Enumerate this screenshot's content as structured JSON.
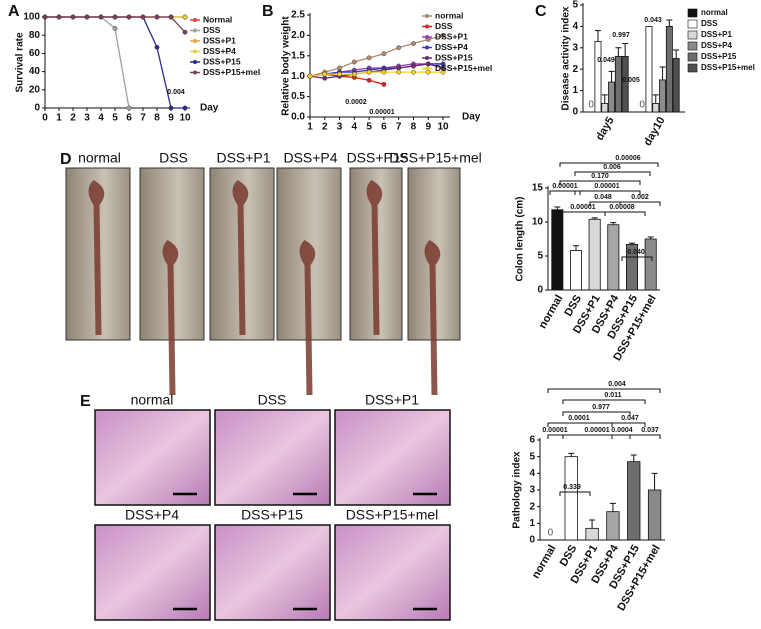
{
  "panels": [
    "A",
    "B",
    "C",
    "D",
    "E"
  ],
  "photo_labels": {
    "D": [
      "normal",
      "DSS",
      "DSS+P1",
      "DSS+P4",
      "DSS+P15",
      "DSS+P15+mel"
    ],
    "E": [
      "normal",
      "DSS",
      "DSS+P1",
      "DSS+P4",
      "DSS+P15",
      "DSS+P15+mel"
    ]
  },
  "chart_data": [
    {
      "type": "line",
      "xlabel": "Day",
      "ylabel": "Survival rate",
      "x": [
        0,
        1,
        2,
        3,
        4,
        5,
        6,
        7,
        8,
        9,
        10
      ],
      "xlim": [
        0,
        10
      ],
      "xticks": [
        0,
        1,
        2,
        3,
        4,
        5,
        6,
        7,
        8,
        9,
        10
      ],
      "ylim": [
        0,
        100
      ],
      "yticks": [
        0,
        20,
        40,
        60,
        80,
        100
      ],
      "series": [
        {
          "name": "Normal",
          "color": "#e8413c",
          "values": [
            100,
            100,
            100,
            100,
            100,
            100,
            100,
            100,
            100,
            100,
            100
          ]
        },
        {
          "name": "DSS",
          "color": "#a0a0a0",
          "values": [
            100,
            100,
            100,
            100,
            100,
            87.5,
            0,
            null,
            null,
            null,
            null
          ]
        },
        {
          "name": "DSS+P1",
          "color": "#f0a23c",
          "values": [
            100,
            100,
            100,
            100,
            100,
            100,
            100,
            100,
            100,
            100,
            100
          ]
        },
        {
          "name": "DSS+P4",
          "color": "#e6d23c",
          "values": [
            100,
            100,
            100,
            100,
            100,
            100,
            100,
            100,
            100,
            100,
            100
          ]
        },
        {
          "name": "DSS+P15",
          "color": "#2b2b8c",
          "values": [
            100,
            100,
            100,
            100,
            100,
            100,
            100,
            100,
            66.7,
            0,
            0
          ]
        },
        {
          "name": "DSS+P15+mel",
          "color": "#7b3f5e",
          "values": [
            100,
            100,
            100,
            100,
            100,
            100,
            100,
            100,
            100,
            100,
            83.3
          ]
        }
      ],
      "annotations": [
        "0.004"
      ]
    },
    {
      "type": "line",
      "xlabel": "Day",
      "ylabel": "Relative body weight",
      "x": [
        1,
        2,
        3,
        4,
        5,
        6,
        7,
        8,
        9,
        10
      ],
      "xlim": [
        1,
        10
      ],
      "xticks": [
        1,
        2,
        3,
        4,
        5,
        6,
        7,
        8,
        9,
        10
      ],
      "ylim": [
        0,
        2.5
      ],
      "yticks": [
        {
          "value": 0,
          "label": "0.0"
        },
        0.5,
        {
          "value": 1,
          "label": "1.0"
        },
        1.5,
        {
          "value": 2,
          "label": "2.0"
        },
        2.5
      ],
      "series": [
        {
          "name": "normal",
          "color": "#b08a6e",
          "values": [
            1.0,
            1.1,
            1.2,
            1.35,
            1.45,
            1.55,
            1.7,
            1.8,
            1.9,
            2.0
          ]
        },
        {
          "name": "DSS",
          "color": "#e02020",
          "values": [
            1.0,
            1.05,
            1.0,
            0.97,
            0.9,
            0.8,
            null,
            null,
            null,
            null
          ]
        },
        {
          "name": "DSS+P1",
          "color": "#9b3fb5",
          "values": [
            1.0,
            1.05,
            1.1,
            1.15,
            1.2,
            1.2,
            1.25,
            1.3,
            1.3,
            1.3
          ]
        },
        {
          "name": "DSS+P4",
          "color": "#3b3bb5",
          "values": [
            1.0,
            1.05,
            1.1,
            1.1,
            1.15,
            1.2,
            1.2,
            1.25,
            1.3,
            1.3
          ]
        },
        {
          "name": "DSS+P15",
          "color": "#6a2c70",
          "values": [
            1.0,
            0.95,
            1.0,
            1.05,
            1.1,
            1.15,
            1.2,
            1.25,
            1.3,
            1.2
          ]
        },
        {
          "name": "DSS+P15+mel",
          "color": "#f0d020",
          "values": [
            1.0,
            1.05,
            1.05,
            1.05,
            1.1,
            1.1,
            1.1,
            1.1,
            1.1,
            1.1
          ]
        }
      ],
      "annotations": [
        "0.0002",
        "0.00001"
      ]
    },
    {
      "type": "bar",
      "ylabel": "Disease activity index",
      "categories": [
        "day5",
        "day10"
      ],
      "ylim": [
        0,
        5
      ],
      "yticks": [
        0,
        1,
        2,
        3,
        4,
        5
      ],
      "series": [
        {
          "name": "normal",
          "color": "#111111",
          "values": [
            0,
            0
          ],
          "errors": [
            0,
            0
          ]
        },
        {
          "name": "DSS",
          "color": "#ffffff",
          "values": [
            3.3,
            4.0
          ],
          "errors": [
            0.5,
            0
          ]
        },
        {
          "name": "DSS+P1",
          "color": "#d9d9d9",
          "values": [
            0.4,
            0.4
          ],
          "errors": [
            0.4,
            0.4
          ]
        },
        {
          "name": "DSS+P4",
          "color": "#8c8c8c",
          "values": [
            1.4,
            1.5
          ],
          "errors": [
            0.5,
            0.6
          ]
        },
        {
          "name": "DSS+P15",
          "color": "#6e6e6e",
          "values": [
            2.6,
            4.0
          ],
          "errors": [
            0.4,
            0.3
          ]
        },
        {
          "name": "DSS+P15+mel",
          "color": "#505050",
          "values": [
            2.6,
            2.5
          ],
          "errors": [
            0.6,
            0.4
          ]
        }
      ],
      "annotations": [
        "0.997",
        "0.049",
        "0.043",
        "0.005"
      ]
    },
    {
      "type": "bar",
      "ylabel": "Colon length (cm)",
      "categories": [
        "normal",
        "DSS",
        "DSS+P1",
        "DSS+P4",
        "DSS+P15",
        "DSS+P15+mel"
      ],
      "values": [
        11.8,
        5.8,
        10.4,
        9.6,
        6.7,
        7.5
      ],
      "errors": [
        0.4,
        0.7,
        0.2,
        0.3,
        0.2,
        0.3
      ],
      "colors": [
        "#111111",
        "#ffffff",
        "#d9d9d9",
        "#a6a6a6",
        "#6e6e6e",
        "#8a8a8a"
      ],
      "ylim": [
        0,
        15
      ],
      "yticks": [
        0,
        5,
        10,
        15
      ],
      "annotations": [
        "0.00006",
        "0.006",
        "0.170",
        "0.00001",
        "0.00001",
        "0.002",
        "0.048",
        "0.00001",
        "0.00008",
        "0.040"
      ]
    },
    {
      "type": "bar",
      "ylabel": "Pathology index",
      "categories": [
        "normal",
        "DSS",
        "DSS+P1",
        "DSS+P4",
        "DSS+P15",
        "DSS+P15+mel"
      ],
      "values": [
        0,
        5.0,
        0.7,
        1.7,
        4.7,
        3.0
      ],
      "errors": [
        0,
        0.2,
        0.5,
        0.5,
        0.4,
        1.0
      ],
      "colors": [
        "#111111",
        "#ffffff",
        "#d9d9d9",
        "#a6a6a6",
        "#6e6e6e",
        "#8a8a8a"
      ],
      "ylim": [
        0,
        6
      ],
      "yticks": [
        0,
        1,
        2,
        3,
        4,
        5,
        6
      ],
      "annotations": [
        "0.004",
        "0.011",
        "0.977",
        "0.0001",
        "0.047",
        "0.00001",
        "0.00001",
        "0.0004",
        "0.037",
        "0.339"
      ]
    }
  ]
}
